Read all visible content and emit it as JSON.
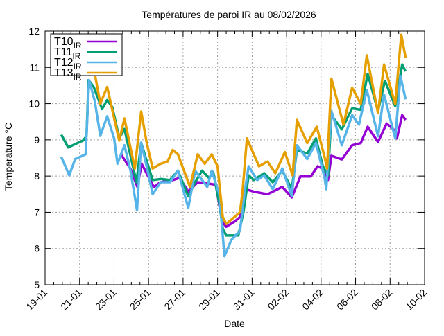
{
  "chart_data": {
    "type": "line",
    "title": "Températures de paroi IR au 08/02/2026",
    "xlabel": "Date",
    "ylabel": "Temperature °C",
    "x_unit": "days since 19-01",
    "xlim": [
      0,
      22
    ],
    "ylim": [
      5,
      12
    ],
    "x_ticks": [
      {
        "value": 0,
        "label": "19-01"
      },
      {
        "value": 2,
        "label": "21-01"
      },
      {
        "value": 4,
        "label": "23-01"
      },
      {
        "value": 6,
        "label": "25-01"
      },
      {
        "value": 8,
        "label": "27-01"
      },
      {
        "value": 10,
        "label": "29-01"
      },
      {
        "value": 12,
        "label": "31-01"
      },
      {
        "value": 14,
        "label": "02-02"
      },
      {
        "value": 16,
        "label": "04-02"
      },
      {
        "value": 18,
        "label": "06-02"
      },
      {
        "value": 20,
        "label": "08-02"
      },
      {
        "value": 22,
        "label": "10-02"
      }
    ],
    "y_ticks": [
      5,
      6,
      7,
      8,
      9,
      10,
      11,
      12
    ],
    "grid": true,
    "legend_position": "top-left",
    "series": [
      {
        "name": "T10",
        "subscript": "IR",
        "color": "#9400d3",
        "points": [
          [
            4.4,
            8.6
          ],
          [
            4.95,
            8.2
          ],
          [
            5.35,
            7.7
          ],
          [
            5.6,
            8.34
          ],
          [
            6.3,
            7.7
          ],
          [
            6.7,
            7.83
          ],
          [
            7.4,
            7.89
          ],
          [
            7.8,
            7.95
          ],
          [
            8.3,
            7.57
          ],
          [
            8.85,
            7.83
          ],
          [
            9.4,
            7.8
          ],
          [
            9.9,
            7.76
          ],
          [
            10.26,
            6.75
          ],
          [
            10.5,
            6.6
          ],
          [
            11.0,
            6.75
          ],
          [
            11.3,
            6.87
          ],
          [
            11.6,
            7.64
          ],
          [
            12.1,
            7.57
          ],
          [
            12.9,
            7.5
          ],
          [
            13.75,
            7.7
          ],
          [
            14.3,
            7.41
          ],
          [
            14.8,
            7.99
          ],
          [
            15.4,
            7.99
          ],
          [
            15.8,
            8.27
          ],
          [
            16.2,
            8.18
          ],
          [
            16.4,
            7.89
          ],
          [
            16.6,
            8.56
          ],
          [
            17.2,
            8.46
          ],
          [
            17.8,
            8.85
          ],
          [
            18.3,
            8.91
          ],
          [
            18.7,
            9.36
          ],
          [
            19.3,
            8.94
          ],
          [
            19.8,
            9.45
          ],
          [
            20.2,
            9.29
          ],
          [
            20.4,
            9.04
          ],
          [
            20.7,
            9.68
          ],
          [
            20.9,
            9.55
          ]
        ]
      },
      {
        "name": "T11",
        "subscript": "IR",
        "color": "#009e73",
        "points": [
          [
            0.94,
            9.14
          ],
          [
            1.34,
            8.79
          ],
          [
            1.74,
            8.88
          ],
          [
            2.2,
            8.98
          ],
          [
            2.4,
            9.1
          ],
          [
            2.52,
            10.65
          ],
          [
            2.82,
            10.46
          ],
          [
            3.3,
            9.85
          ],
          [
            3.6,
            10.1
          ],
          [
            3.9,
            9.9
          ],
          [
            4.3,
            9.04
          ],
          [
            4.6,
            9.3
          ],
          [
            5.3,
            7.83
          ],
          [
            5.57,
            8.92
          ],
          [
            5.9,
            8.4
          ],
          [
            6.24,
            7.89
          ],
          [
            6.7,
            7.92
          ],
          [
            7.24,
            7.89
          ],
          [
            7.7,
            8.15
          ],
          [
            8.3,
            7.44
          ],
          [
            8.7,
            7.83
          ],
          [
            9.1,
            8.15
          ],
          [
            9.5,
            7.95
          ],
          [
            9.75,
            8.11
          ],
          [
            10.1,
            7.25
          ],
          [
            10.3,
            6.55
          ],
          [
            10.5,
            6.36
          ],
          [
            11.2,
            6.36
          ],
          [
            11.5,
            7.0
          ],
          [
            11.8,
            8.02
          ],
          [
            12.1,
            7.89
          ],
          [
            12.7,
            8.08
          ],
          [
            13.2,
            7.83
          ],
          [
            13.75,
            8.15
          ],
          [
            14.3,
            7.64
          ],
          [
            14.6,
            8.72
          ],
          [
            15.2,
            8.62
          ],
          [
            15.7,
            9.04
          ],
          [
            16.1,
            8.27
          ],
          [
            16.4,
            8.02
          ],
          [
            16.6,
            9.68
          ],
          [
            17.2,
            9.29
          ],
          [
            17.8,
            9.87
          ],
          [
            18.3,
            9.83
          ],
          [
            18.7,
            10.82
          ],
          [
            19.3,
            9.8
          ],
          [
            19.7,
            10.63
          ],
          [
            20.3,
            9.93
          ],
          [
            20.7,
            11.08
          ],
          [
            20.9,
            10.89
          ]
        ]
      },
      {
        "name": "T12",
        "subscript": "IR",
        "color": "#56b4e9",
        "points": [
          [
            0.94,
            8.53
          ],
          [
            1.4,
            8.02
          ],
          [
            1.74,
            8.47
          ],
          [
            2.35,
            8.6
          ],
          [
            2.55,
            10.65
          ],
          [
            2.88,
            10.07
          ],
          [
            3.2,
            9.11
          ],
          [
            3.6,
            9.65
          ],
          [
            4.0,
            9.04
          ],
          [
            4.2,
            8.34
          ],
          [
            4.6,
            8.85
          ],
          [
            4.95,
            8.15
          ],
          [
            5.33,
            7.06
          ],
          [
            5.57,
            8.92
          ],
          [
            5.97,
            8.1
          ],
          [
            6.24,
            7.5
          ],
          [
            6.7,
            7.83
          ],
          [
            7.24,
            7.83
          ],
          [
            7.7,
            8.15
          ],
          [
            8.3,
            7.12
          ],
          [
            8.7,
            8.15
          ],
          [
            9.4,
            7.7
          ],
          [
            9.66,
            8.15
          ],
          [
            10.1,
            7.5
          ],
          [
            10.4,
            5.79
          ],
          [
            10.8,
            6.24
          ],
          [
            11.3,
            6.49
          ],
          [
            11.55,
            7.5
          ],
          [
            11.8,
            8.27
          ],
          [
            12.3,
            7.89
          ],
          [
            12.7,
            8.02
          ],
          [
            13.2,
            7.64
          ],
          [
            13.75,
            8.21
          ],
          [
            14.3,
            7.45
          ],
          [
            14.6,
            8.85
          ],
          [
            15.2,
            8.47
          ],
          [
            15.7,
            8.91
          ],
          [
            16.2,
            7.96
          ],
          [
            16.3,
            7.64
          ],
          [
            16.6,
            9.8
          ],
          [
            17.2,
            8.85
          ],
          [
            17.8,
            9.68
          ],
          [
            18.2,
            9.42
          ],
          [
            18.65,
            10.38
          ],
          [
            19.3,
            9.1
          ],
          [
            19.65,
            10.25
          ],
          [
            20.3,
            9.04
          ],
          [
            20.6,
            10.76
          ],
          [
            20.9,
            10.12
          ]
        ]
      },
      {
        "name": "T13",
        "subscript": "IR",
        "color": "#e69f00",
        "points": [
          [
            2.7,
            11.3
          ],
          [
            3.2,
            10.0
          ],
          [
            3.6,
            10.46
          ],
          [
            4.0,
            9.6
          ],
          [
            4.3,
            8.98
          ],
          [
            4.6,
            9.59
          ],
          [
            5.2,
            8.21
          ],
          [
            5.57,
            9.78
          ],
          [
            5.9,
            8.9
          ],
          [
            6.24,
            8.21
          ],
          [
            6.7,
            8.34
          ],
          [
            7.1,
            8.4
          ],
          [
            7.4,
            8.72
          ],
          [
            7.7,
            8.6
          ],
          [
            8.4,
            7.7
          ],
          [
            8.85,
            8.6
          ],
          [
            9.26,
            8.34
          ],
          [
            9.66,
            8.6
          ],
          [
            10.0,
            8.27
          ],
          [
            10.3,
            6.87
          ],
          [
            10.5,
            6.68
          ],
          [
            11.3,
            7.0
          ],
          [
            11.45,
            7.6
          ],
          [
            11.7,
            9.04
          ],
          [
            12.4,
            8.27
          ],
          [
            12.9,
            8.4
          ],
          [
            13.35,
            8.08
          ],
          [
            13.9,
            8.66
          ],
          [
            14.35,
            8.02
          ],
          [
            14.6,
            9.55
          ],
          [
            15.2,
            8.91
          ],
          [
            15.75,
            9.36
          ],
          [
            16.2,
            8.53
          ],
          [
            16.35,
            8.21
          ],
          [
            16.6,
            10.69
          ],
          [
            17.3,
            9.42
          ],
          [
            17.8,
            10.44
          ],
          [
            18.3,
            9.99
          ],
          [
            18.65,
            11.33
          ],
          [
            19.3,
            9.74
          ],
          [
            19.65,
            11.08
          ],
          [
            20.3,
            9.99
          ],
          [
            20.65,
            11.9
          ],
          [
            20.9,
            11.27
          ]
        ]
      }
    ]
  }
}
